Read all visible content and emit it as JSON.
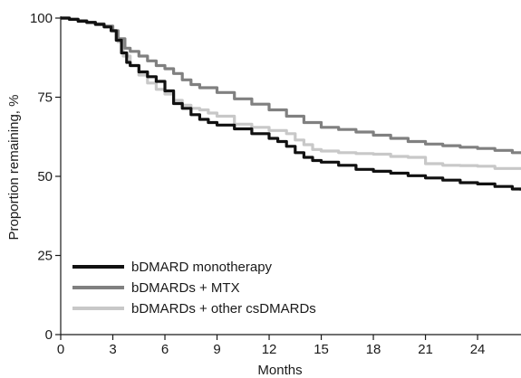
{
  "chart_data": {
    "type": "line",
    "xlabel": "Months",
    "ylabel": "Proportion remaining, %",
    "xlim": [
      0,
      26.5
    ],
    "ylim": [
      0,
      100
    ],
    "x_ticks": [
      0,
      3,
      6,
      9,
      12,
      15,
      18,
      21,
      24
    ],
    "y_ticks": [
      0,
      25,
      50,
      75,
      100
    ],
    "grid": false,
    "legend_position": "bottom-left",
    "series": [
      {
        "name": "bDMARD monotherapy",
        "color": "#111111",
        "points": [
          [
            0,
            100
          ],
          [
            0.5,
            99.6
          ],
          [
            1,
            99
          ],
          [
            1.5,
            98.6
          ],
          [
            2,
            98
          ],
          [
            2.5,
            97.2
          ],
          [
            2.9,
            96
          ],
          [
            3.2,
            93
          ],
          [
            3.5,
            89
          ],
          [
            3.8,
            86
          ],
          [
            4,
            85
          ],
          [
            4.5,
            83
          ],
          [
            5,
            81.5
          ],
          [
            5.5,
            80
          ],
          [
            6,
            77
          ],
          [
            6.5,
            73
          ],
          [
            7,
            71.5
          ],
          [
            7.5,
            69.5
          ],
          [
            8,
            68
          ],
          [
            8.5,
            67
          ],
          [
            9,
            66.2
          ],
          [
            10,
            65
          ],
          [
            11,
            63.5
          ],
          [
            12,
            62
          ],
          [
            12.5,
            61
          ],
          [
            13,
            59.5
          ],
          [
            13.5,
            57.5
          ],
          [
            14,
            56
          ],
          [
            14.5,
            55
          ],
          [
            15,
            54.5
          ],
          [
            16,
            53.5
          ],
          [
            17,
            52.2
          ],
          [
            18,
            51.6
          ],
          [
            19,
            51
          ],
          [
            20,
            50.2
          ],
          [
            21,
            49.5
          ],
          [
            22,
            48.8
          ],
          [
            23,
            48
          ],
          [
            24,
            47.6
          ],
          [
            25,
            46.8
          ],
          [
            26,
            46
          ],
          [
            26.5,
            45.5
          ]
        ]
      },
      {
        "name": "bDMARDs + MTX",
        "color": "#808080",
        "points": [
          [
            0,
            100
          ],
          [
            0.5,
            99.6
          ],
          [
            1,
            99.2
          ],
          [
            1.5,
            98.7
          ],
          [
            2,
            98.2
          ],
          [
            2.5,
            97.5
          ],
          [
            3,
            96
          ],
          [
            3.3,
            93.5
          ],
          [
            3.7,
            90.5
          ],
          [
            4,
            89.5
          ],
          [
            4.5,
            88
          ],
          [
            5,
            86.5
          ],
          [
            5.5,
            85
          ],
          [
            6,
            84
          ],
          [
            6.5,
            82.5
          ],
          [
            7,
            80.5
          ],
          [
            7.5,
            79
          ],
          [
            8,
            78
          ],
          [
            9,
            76.5
          ],
          [
            10,
            74.5
          ],
          [
            11,
            72.8
          ],
          [
            12,
            71
          ],
          [
            13,
            69
          ],
          [
            14,
            67
          ],
          [
            15,
            65.5
          ],
          [
            16,
            64.8
          ],
          [
            17,
            64
          ],
          [
            18,
            63
          ],
          [
            19,
            62
          ],
          [
            20,
            61
          ],
          [
            21,
            60.2
          ],
          [
            22,
            59.7
          ],
          [
            23,
            59.2
          ],
          [
            24,
            58.8
          ],
          [
            25,
            58.2
          ],
          [
            26,
            57.5
          ],
          [
            26.5,
            57.2
          ]
        ]
      },
      {
        "name": "bDMARDs + other csDMARDs",
        "color": "#c8c8c8",
        "points": [
          [
            0,
            100
          ],
          [
            0.5,
            99.7
          ],
          [
            1,
            99.2
          ],
          [
            1.5,
            98.6
          ],
          [
            2,
            98
          ],
          [
            2.5,
            97.4
          ],
          [
            3,
            96
          ],
          [
            3.3,
            92.5
          ],
          [
            3.6,
            88
          ],
          [
            4,
            85
          ],
          [
            4.5,
            82
          ],
          [
            5,
            79.5
          ],
          [
            5.5,
            77.5
          ],
          [
            6,
            76
          ],
          [
            6.5,
            74
          ],
          [
            7,
            72.5
          ],
          [
            7.5,
            71.5
          ],
          [
            8,
            71
          ],
          [
            8.5,
            70
          ],
          [
            9,
            69
          ],
          [
            10,
            66.5
          ],
          [
            11,
            65.5
          ],
          [
            12,
            64.5
          ],
          [
            13,
            63.5
          ],
          [
            13.5,
            61.5
          ],
          [
            14,
            60
          ],
          [
            14.5,
            58.5
          ],
          [
            15,
            58
          ],
          [
            16,
            57.5
          ],
          [
            17,
            57.2
          ],
          [
            18,
            57
          ],
          [
            19,
            56.3
          ],
          [
            20,
            56
          ],
          [
            21,
            54
          ],
          [
            22,
            53.5
          ],
          [
            23,
            53.4
          ],
          [
            24,
            53.2
          ],
          [
            25,
            52.5
          ],
          [
            26,
            52.5
          ],
          [
            26.5,
            52.5
          ]
        ]
      }
    ]
  }
}
